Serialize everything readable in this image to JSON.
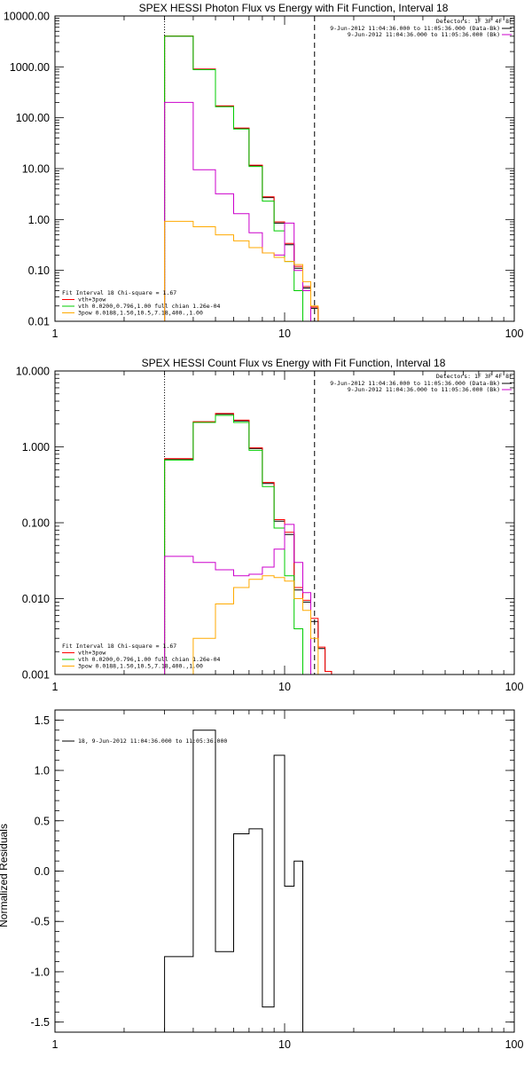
{
  "chart_data": [
    {
      "id": "photon",
      "type": "line",
      "title": "SPEX HESSI Photon Flux vs Energy with Fit Function, Interval 18",
      "xscale": "log",
      "yscale": "log",
      "xlim": [
        1,
        100
      ],
      "ylim": [
        0.01,
        10000
      ],
      "xticks": [
        1,
        10,
        100
      ],
      "xticklabels": [
        "1",
        "10",
        "100"
      ],
      "yticks": [
        0.01,
        0.1,
        1,
        10,
        100,
        1000,
        10000
      ],
      "yticklabels": [
        "0.01",
        "0.10",
        "1.00",
        "10.00",
        "100.00",
        "1000.00",
        "10000.00"
      ],
      "edges": [
        3,
        4,
        5,
        6,
        7,
        8,
        9,
        10,
        11,
        12,
        13,
        14,
        15
      ],
      "vlines": [
        {
          "x": 3.0,
          "style": "dotted"
        },
        {
          "x": 13.5,
          "style": "dashed"
        }
      ],
      "legend_right": {
        "header": "Detectors: 1F 3F 4F 8F",
        "items": [
          {
            "label": "9-Jun-2012 11:04:36.000 to 11:05:36.000 (Data-Bk)",
            "color": "#000000"
          },
          {
            "label": "9-Jun-2012 11:04:36.000 to 11:05:36.000 (Bk)",
            "color": "#cc00cc"
          }
        ]
      },
      "legend_left": [
        {
          "label": "Fit Interval 18   Chi-square = 1.67",
          "color": null
        },
        {
          "label": "vth+3pow",
          "color": "#ff0000"
        },
        {
          "label": "vth 0.0200,0.796,1.00  full chian 1.26e-04",
          "color": "#00cc00"
        },
        {
          "label": "3pow 0.0188,1.50,10.5,7.18,400.,1.00",
          "color": "#ffaa00"
        }
      ],
      "series": [
        {
          "key": "data",
          "color": "#000000",
          "values": [
            4000,
            900,
            170,
            62,
            11.5,
            2.7,
            0.85,
            0.32,
            0.11,
            0.045,
            0.018,
            null
          ]
        },
        {
          "key": "total",
          "color": "#ff0000",
          "values": [
            4050,
            910,
            172,
            63,
            11.7,
            2.8,
            0.9,
            0.34,
            0.12,
            0.048,
            0.019,
            null
          ]
        },
        {
          "key": "vth",
          "color": "#00cc00",
          "values": [
            4000,
            880,
            165,
            60,
            11,
            2.3,
            0.6,
            0.15,
            0.04,
            0.008,
            null,
            null
          ]
        },
        {
          "key": "bk",
          "color": "#cc00cc",
          "values": [
            200,
            9.5,
            3.2,
            1.3,
            0.55,
            0.22,
            0.2,
            0.85,
            0.1,
            0.04,
            null,
            null
          ]
        },
        {
          "key": "pow",
          "color": "#ffaa00",
          "values": [
            0.92,
            0.72,
            0.5,
            0.38,
            0.28,
            0.22,
            0.18,
            0.15,
            0.13,
            0.06,
            0.02,
            null
          ]
        }
      ]
    },
    {
      "id": "count",
      "type": "line",
      "title": "SPEX HESSI Count Flux vs Energy with Fit Function, Interval 18",
      "xscale": "log",
      "yscale": "log",
      "xlim": [
        1,
        100
      ],
      "ylim": [
        0.001,
        10
      ],
      "xticks": [
        1,
        10,
        100
      ],
      "xticklabels": [
        "1",
        "10",
        "100"
      ],
      "yticks": [
        0.001,
        0.01,
        0.1,
        1,
        10
      ],
      "yticklabels": [
        "0.001",
        "0.010",
        "0.100",
        "1.000",
        "10.000"
      ],
      "edges": [
        3,
        4,
        5,
        6,
        7,
        8,
        9,
        10,
        11,
        12,
        13,
        14,
        15,
        16
      ],
      "vlines": [
        {
          "x": 3.0,
          "style": "dotted"
        },
        {
          "x": 13.5,
          "style": "dashed"
        }
      ],
      "legend_right": {
        "header": "Detectors: 1F 3F 4F 8F",
        "items": [
          {
            "label": "9-Jun-2012 11:04:36.000 to 11:05:36.000 (Data-Bk)",
            "color": "#000000"
          },
          {
            "label": "9-Jun-2012 11:04:36.000 to 11:05:36.000 (Bk)",
            "color": "#cc00cc"
          }
        ]
      },
      "legend_left": [
        {
          "label": "Fit Interval 18   Chi-square = 1.67",
          "color": null
        },
        {
          "label": "vth+3pow",
          "color": "#ff0000"
        },
        {
          "label": "vth 0.0200,0.796,1.00  full chian 1.26e-04",
          "color": "#00cc00"
        },
        {
          "label": "3pow 0.0188,1.50,10.5,7.18,400.,1.00",
          "color": "#ffaa00"
        }
      ],
      "series": [
        {
          "key": "data",
          "color": "#000000",
          "values": [
            0.68,
            2.1,
            2.7,
            2.2,
            0.95,
            0.33,
            0.105,
            0.07,
            0.013,
            0.009,
            0.005,
            0.0022,
            0.0011
          ]
        },
        {
          "key": "total",
          "color": "#ff0000",
          "values": [
            0.7,
            2.15,
            2.75,
            2.25,
            0.97,
            0.34,
            0.11,
            0.075,
            0.014,
            0.0095,
            0.0055,
            0.0023,
            0.0011
          ]
        },
        {
          "key": "vth",
          "color": "#00cc00",
          "values": [
            0.67,
            2.1,
            2.6,
            2.1,
            0.9,
            0.3,
            0.085,
            0.02,
            0.004,
            0.0008,
            null,
            null,
            null
          ]
        },
        {
          "key": "bk",
          "color": "#cc00cc",
          "values": [
            0.036,
            0.03,
            0.024,
            0.02,
            0.021,
            0.026,
            0.045,
            0.095,
            0.03,
            0.012,
            null,
            null,
            null
          ]
        },
        {
          "key": "pow",
          "color": "#ffaa00",
          "values": [
            null,
            0.003,
            0.0085,
            0.014,
            0.018,
            0.02,
            0.019,
            0.017,
            0.01,
            0.007,
            0.003,
            null,
            null
          ]
        }
      ]
    },
    {
      "id": "residuals",
      "type": "line",
      "title": "",
      "xscale": "log",
      "yscale": "linear",
      "xlim": [
        1,
        100
      ],
      "ylim": [
        -1.6,
        1.6
      ],
      "xticks": [
        1,
        10,
        100
      ],
      "xticklabels": [
        "1",
        "10",
        "100"
      ],
      "yticks": [
        -1.5,
        -1.0,
        -0.5,
        0.0,
        0.5,
        1.0,
        1.5
      ],
      "yticklabels": [
        "-1.5",
        "-1.0",
        "-0.5",
        "0.0",
        "0.5",
        "1.0",
        "1.5"
      ],
      "ylabel": "Normalized Residuals",
      "edges": [
        3,
        4,
        5,
        6,
        7,
        8,
        9,
        10,
        11,
        12,
        13
      ],
      "legend_left": [
        {
          "label": "18,  9-Jun-2012 11:04:36.000 to 11:05:36.000",
          "color": "#000000"
        }
      ],
      "series": [
        {
          "key": "resid",
          "color": "#000000",
          "values": [
            -0.85,
            1.4,
            -0.8,
            0.37,
            0.42,
            -1.35,
            1.15,
            -0.15,
            0.1
          ]
        }
      ]
    }
  ]
}
